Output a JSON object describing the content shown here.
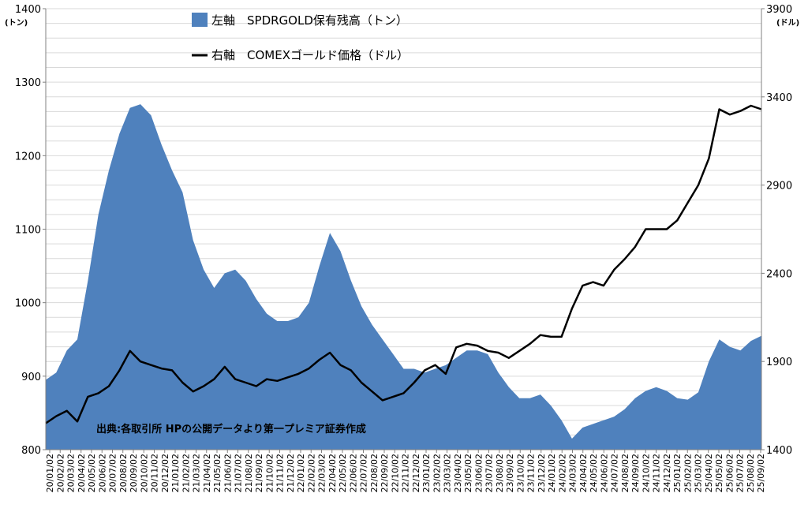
{
  "colors": {
    "area": "#4f81bd",
    "line": "#000000",
    "grid": "#d9d9d9",
    "axis": "#808080"
  },
  "chart_data": {
    "type": "area+line",
    "title": "",
    "left_axis": {
      "unit": "(トン)",
      "min": 800,
      "max": 1400,
      "ticks": [
        800,
        900,
        1000,
        1100,
        1200,
        1300,
        1400
      ]
    },
    "right_axis": {
      "unit": "(ドル)",
      "min": 1400,
      "max": 3900,
      "ticks": [
        1400,
        1900,
        2400,
        2900,
        3400,
        3900
      ]
    },
    "x_ticks": [
      "20/01/02",
      "20/02/02",
      "20/03/02",
      "20/04/02",
      "20/05/02",
      "20/06/02",
      "20/07/02",
      "20/08/02",
      "20/09/02",
      "20/10/02",
      "20/11/02",
      "20/12/02",
      "21/01/02",
      "21/02/02",
      "21/03/02",
      "21/04/02",
      "21/05/02",
      "21/06/02",
      "21/07/02",
      "21/08/02",
      "21/09/02",
      "21/10/02",
      "21/11/02",
      "21/12/02",
      "22/01/02",
      "22/02/02",
      "22/03/02",
      "22/04/02",
      "22/05/02",
      "22/06/02",
      "22/07/02",
      "22/08/02",
      "22/09/02",
      "22/10/02",
      "22/11/02",
      "22/12/02",
      "23/01/02",
      "23/02/02",
      "23/03/02",
      "23/04/02",
      "23/05/02",
      "23/06/02",
      "23/07/02",
      "23/08/02",
      "23/09/02",
      "23/10/02",
      "23/11/02",
      "23/12/02",
      "24/01/02",
      "24/02/02",
      "24/03/02",
      "24/04/02",
      "24/05/02",
      "24/06/02",
      "24/07/02",
      "24/08/02",
      "24/09/02",
      "24/10/02",
      "24/11/02",
      "24/12/02",
      "25/01/02",
      "25/02/02",
      "25/03/02",
      "25/04/02",
      "25/05/02",
      "25/06/02",
      "25/07/02",
      "25/08/02",
      "25/09/02"
    ],
    "series": [
      {
        "name": "左軸　SPDRGOLD保有残高（トン）",
        "axis": "left",
        "kind": "area",
        "values": [
          895,
          905,
          935,
          950,
          1030,
          1120,
          1180,
          1230,
          1265,
          1270,
          1255,
          1215,
          1180,
          1150,
          1085,
          1045,
          1020,
          1040,
          1045,
          1030,
          1005,
          985,
          975,
          975,
          980,
          1000,
          1050,
          1095,
          1070,
          1030,
          995,
          970,
          950,
          930,
          910,
          910,
          905,
          910,
          915,
          925,
          935,
          935,
          930,
          905,
          885,
          870,
          870,
          875,
          860,
          840,
          815,
          830,
          835,
          840,
          845,
          855,
          870,
          880,
          885,
          880,
          870,
          868,
          878,
          920,
          950,
          940,
          935,
          948,
          955
        ]
      },
      {
        "name": "右軸　COMEXゴールド価格（ドル）",
        "axis": "right",
        "kind": "line",
        "values": [
          1550,
          1590,
          1620,
          1560,
          1700,
          1720,
          1760,
          1850,
          1960,
          1900,
          1880,
          1860,
          1850,
          1780,
          1730,
          1760,
          1800,
          1870,
          1800,
          1780,
          1760,
          1800,
          1790,
          1810,
          1830,
          1860,
          1910,
          1950,
          1880,
          1850,
          1780,
          1730,
          1680,
          1700,
          1720,
          1780,
          1850,
          1880,
          1830,
          1980,
          2000,
          1990,
          1960,
          1950,
          1920,
          1960,
          2000,
          2050,
          2040,
          2040,
          2200,
          2330,
          2350,
          2330,
          2420,
          2480,
          2550,
          2650,
          2650,
          2650,
          2700,
          2800,
          2900,
          3050,
          3330,
          3300,
          3320,
          3350,
          3330
        ]
      }
    ],
    "annotation": "出典:各取引所 HPの公開データより第一プレミア証券作成"
  }
}
